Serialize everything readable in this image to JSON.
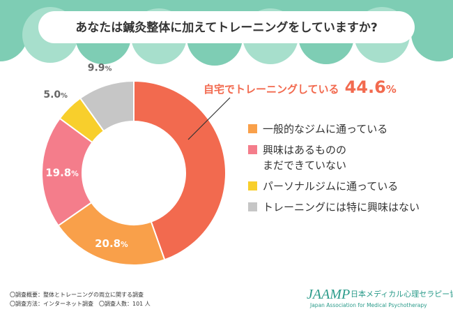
{
  "chart_data": {
    "type": "pie",
    "title": "あなたは鍼灸整体に加えてトレーニングをしていますか?",
    "categories": [
      "自宅でトレーニングしている",
      "一般的なジムに通っている",
      "興味はあるもののまだできていない",
      "パーソナルジムに通っている",
      "トレーニングには特に興味はない"
    ],
    "values": [
      44.6,
      20.8,
      19.8,
      5.0,
      9.9
    ],
    "value_labels": [
      "44.6",
      "20.8",
      "19.8",
      "5.0",
      "9.9"
    ],
    "unit": "%",
    "colors": [
      "#f26a4f",
      "#f9a04a",
      "#f47d8b",
      "#f8cf2c",
      "#c6c6c6"
    ],
    "legend": [
      {
        "lines": [
          "一般的なジムに通っている"
        ],
        "color": "#f9a04a"
      },
      {
        "lines": [
          "興味はあるものの",
          "まだできていない"
        ],
        "color": "#f47d8b"
      },
      {
        "lines": [
          "パーソナルジムに通っている"
        ],
        "color": "#f8cf2c"
      },
      {
        "lines": [
          "トレーニングには特に興味はない"
        ],
        "color": "#c6c6c6"
      }
    ],
    "legend_position": "right",
    "callout_label": "自宅でトレーニングしている"
  },
  "footer": {
    "line1": "〇調査概要：整体とトレーニングの両立に関する調査",
    "line2": "〇調査方法：インターネット調査　〇調査人数：101 人"
  },
  "brand": {
    "logo": "JAAMP",
    "name_ja": "日本メディカル心理セラピー協会",
    "name_en": "Japan Association for Medical Psychotherapy"
  },
  "colors": {
    "accent": "#f26a4f",
    "banner": "#7ecdb4",
    "brand": "#2a9b8a"
  }
}
